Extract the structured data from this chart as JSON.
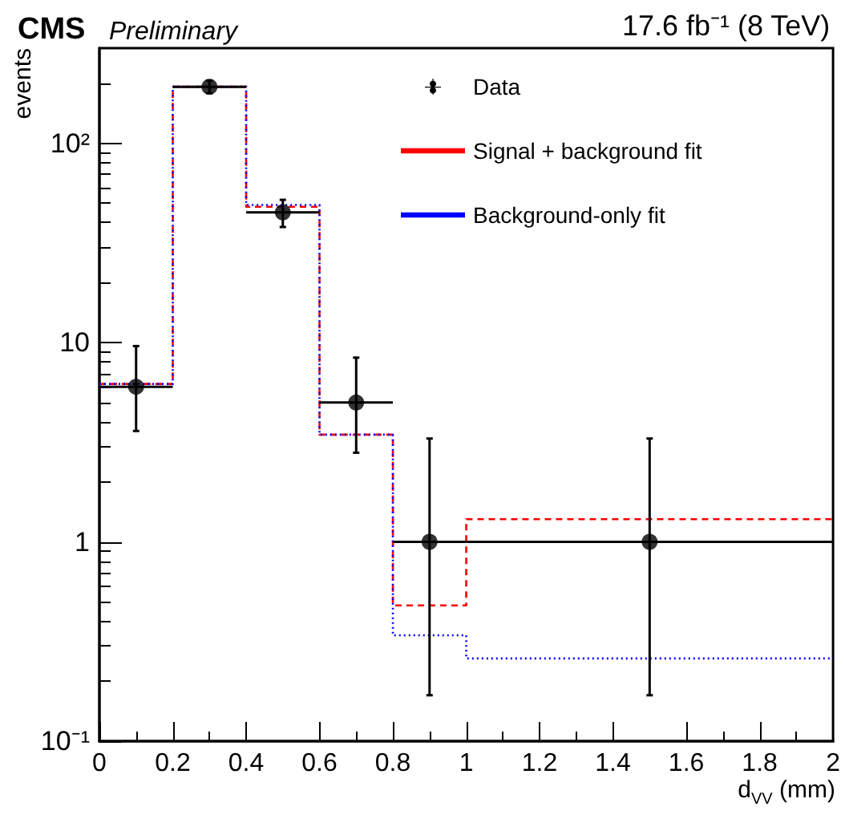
{
  "chart_data": {
    "type": "step",
    "title": "CMS",
    "subtitle": "Preliminary",
    "annotations": [
      "17.6 fb⁻¹ (8 TeV)"
    ],
    "xlabel": "d$_{VV}$ (mm)",
    "ylabel": "events",
    "xlim": [
      0,
      2
    ],
    "xticks": [
      0,
      0.2,
      0.4,
      0.6,
      0.8,
      1,
      1.2,
      1.4,
      1.6,
      1.8,
      2
    ],
    "ylim": [
      0.1,
      300
    ],
    "yticks": [
      {
        "value": 0.1,
        "label": "10⁻¹"
      },
      {
        "value": 1,
        "label": "1"
      },
      {
        "value": 10,
        "label": "10"
      },
      {
        "value": 100,
        "label": "10²"
      }
    ],
    "log": "y",
    "grid": false,
    "legend": "top right",
    "series": [
      {
        "name": "Data",
        "type": "scatter",
        "color": "#000000",
        "marker": "circle",
        "x": [
          0.1,
          0.3,
          0.5,
          0.7,
          0.9,
          1.5
        ],
        "values": [
          6,
          192,
          45,
          5,
          1,
          1
        ],
        "errors": [
          [
            3.6,
            9.6
          ],
          [
            178,
            206
          ],
          [
            38,
            52
          ],
          [
            2.8,
            8.4
          ],
          [
            0.17,
            3.3
          ],
          [
            0.17,
            3.3
          ]
        ],
        "xerrors": [
          0.1,
          0.1,
          0.1,
          0.1,
          0.1,
          0.5
        ]
      },
      {
        "name": "Signal + background fit",
        "type": "step",
        "color": "#ff0000",
        "line_style": "dashed",
        "x": [
          0,
          0.2,
          0.4,
          0.6,
          0.8,
          1,
          2
        ],
        "values": [
          6.2,
          192,
          48,
          3.45,
          0.48,
          1.3,
          1.3
        ]
      },
      {
        "name": "Background-only fit",
        "type": "step",
        "color": "#0000ff",
        "line_style": "dotted",
        "x": [
          0,
          0.2,
          0.4,
          0.6,
          0.8,
          1,
          2
        ],
        "values": [
          6.2,
          192,
          49,
          3.45,
          0.34,
          0.26,
          0.26
        ]
      }
    ]
  }
}
